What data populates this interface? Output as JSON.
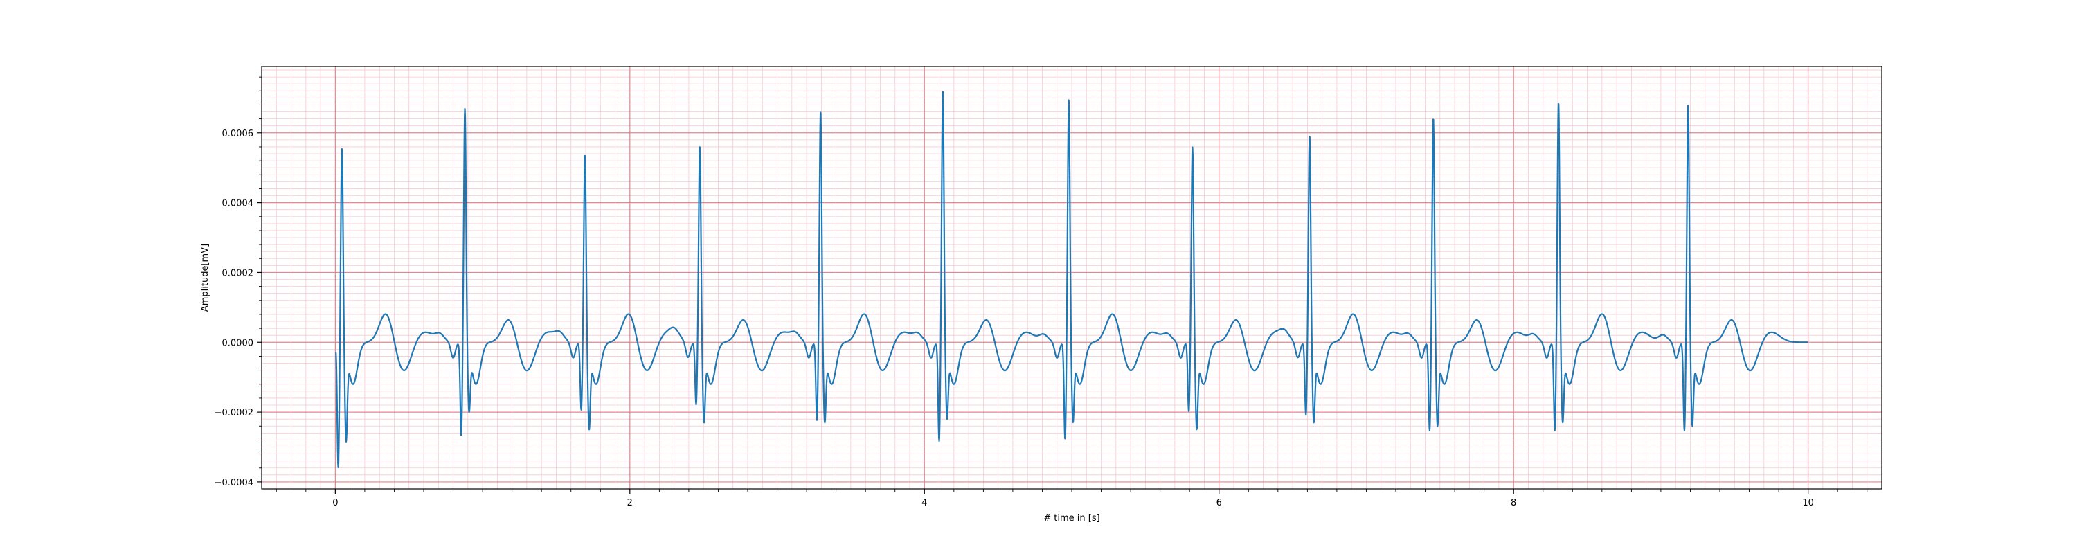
{
  "chart_data": {
    "type": "line",
    "title": "",
    "xlabel": "# time in [s]",
    "ylabel": "Amplitude[mV]",
    "xlim": [
      -0.5,
      10.5
    ],
    "ylim": [
      -0.00042,
      0.00079
    ],
    "xticks": [
      0,
      2,
      4,
      6,
      8,
      10
    ],
    "xtick_labels": [
      "0",
      "2",
      "4",
      "6",
      "8",
      "10"
    ],
    "yticks": [
      -0.0004,
      -0.0002,
      0.0,
      0.0002,
      0.0004,
      0.0006
    ],
    "ytick_labels": [
      "−0.0004",
      "−0.0002",
      "0.0000",
      "0.0002",
      "0.0004",
      "0.0006"
    ],
    "grid": {
      "major": true,
      "minor": true,
      "major_color": "#e8838f",
      "minor_color": "#f6c9d2"
    },
    "line_color": "#1f77b4",
    "beats": [
      {
        "r_time": 0.045,
        "r_peak": 0.000565,
        "s_trough": -0.00025,
        "q_trough": -0.00036
      },
      {
        "r_time": 0.88,
        "r_peak": 0.000675,
        "s_trough": -0.000165,
        "q_trough": -0.00027
      },
      {
        "r_time": 1.695,
        "r_peak": 0.000545,
        "s_trough": -0.000215,
        "q_trough": -0.000195
      },
      {
        "r_time": 2.475,
        "r_peak": 0.00057,
        "s_trough": -0.000195,
        "q_trough": -0.00018
      },
      {
        "r_time": 3.295,
        "r_peak": 0.00067,
        "s_trough": -0.000195,
        "q_trough": -0.000225
      },
      {
        "r_time": 4.125,
        "r_peak": 0.00073,
        "s_trough": -0.000185,
        "q_trough": -0.000285
      },
      {
        "r_time": 4.98,
        "r_peak": 0.0007,
        "s_trough": -0.000195,
        "q_trough": -0.00028
      },
      {
        "r_time": 5.82,
        "r_peak": 0.000565,
        "s_trough": -0.000215,
        "q_trough": -0.0002
      },
      {
        "r_time": 6.615,
        "r_peak": 0.0006,
        "s_trough": -0.000195,
        "q_trough": -0.00021
      },
      {
        "r_time": 7.455,
        "r_peak": 0.00065,
        "s_trough": -0.000205,
        "q_trough": -0.000255
      },
      {
        "r_time": 8.305,
        "r_peak": 0.000695,
        "s_trough": -0.000195,
        "q_trough": -0.000255
      },
      {
        "r_time": 9.185,
        "r_peak": 0.00069,
        "s_trough": -0.000205,
        "q_trough": -0.000255
      }
    ],
    "x_end": 10.0
  }
}
